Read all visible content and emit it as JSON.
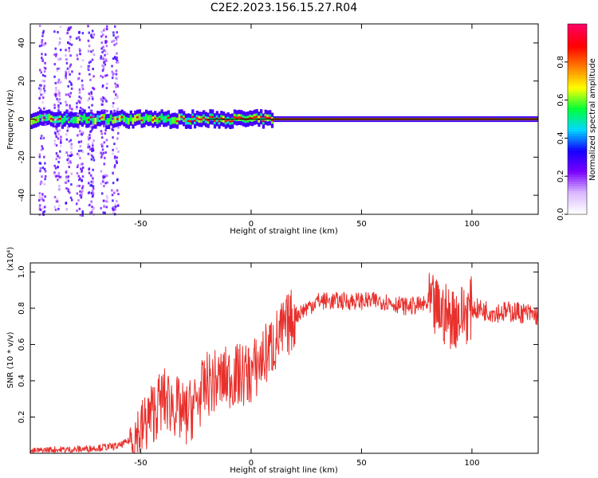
{
  "title": "C2E2.2023.156.15.27.R04",
  "colors": {
    "snr_line": "#e8302c",
    "colormap": [
      "#ffffff",
      "#d9b8ff",
      "#7a00ff",
      "#1400ff",
      "#00d8ff",
      "#00ff3a",
      "#ffff00",
      "#ff8000",
      "#ff0000",
      "#ff0060"
    ]
  },
  "chart_data": [
    {
      "type": "heatmap",
      "name": "spectrogram",
      "xlabel": "Height of straight line (km)",
      "ylabel": "Frequency (Hz)",
      "xlim": [
        -100,
        130
      ],
      "ylim": [
        -50,
        50
      ],
      "xticks": [
        -50,
        0,
        50,
        100
      ],
      "yticks": [
        -40,
        -20,
        0,
        20,
        40
      ],
      "xtick_labels": [
        "-50",
        "0",
        "50",
        "100"
      ],
      "ytick_labels": [
        "-40",
        "-20",
        "0",
        "20",
        "40"
      ],
      "colorbar": {
        "label": "Normalized spectral amplitude",
        "range": [
          0.0,
          1.0
        ],
        "ticks": [
          0.0,
          0.2,
          0.4,
          0.6,
          0.8
        ],
        "tick_labels": [
          "0.0",
          "0.2",
          "0.4",
          "0.6",
          "0.8"
        ]
      },
      "features": {
        "carrier_frequency_hz": 0,
        "band_halfwidth_hz_low_altitude": 4,
        "band_halfwidth_hz_high_altitude": 1.5,
        "diffuse_scatter_x_range": [
          -100,
          -60
        ],
        "diffuse_scatter_freq_range": [
          -50,
          50
        ]
      }
    },
    {
      "type": "line",
      "name": "snr",
      "xlabel": "Height of straight line (km)",
      "ylabel": "SNR (10 * v/v)",
      "yscale_label": "(x10⁴)",
      "xlim": [
        -100,
        130
      ],
      "ylim": [
        0.0,
        1.05
      ],
      "xticks": [
        -50,
        0,
        50,
        100
      ],
      "yticks": [
        0.2,
        0.4,
        0.6,
        0.8,
        1.0
      ],
      "xtick_labels": [
        "-50",
        "0",
        "50",
        "100"
      ],
      "ytick_labels": [
        "0.2",
        "0.4",
        "0.6",
        "0.8",
        "1.0"
      ],
      "series": [
        {
          "x": [
            -100,
            -90,
            -80,
            -70,
            -60,
            -55,
            -50,
            -45,
            -40,
            -35,
            -30,
            -25,
            -20,
            -15,
            -10,
            -5,
            0,
            5,
            10,
            15,
            20,
            25,
            30,
            40,
            50,
            60,
            70,
            80,
            90,
            95,
            100,
            110,
            120,
            130
          ],
          "values": [
            0.01,
            0.02,
            0.02,
            0.03,
            0.04,
            0.07,
            0.12,
            0.22,
            0.3,
            0.27,
            0.2,
            0.28,
            0.38,
            0.4,
            0.42,
            0.43,
            0.44,
            0.52,
            0.6,
            0.68,
            0.76,
            0.8,
            0.84,
            0.84,
            0.84,
            0.84,
            0.81,
            0.82,
            0.75,
            0.76,
            0.8,
            0.78,
            0.78,
            0.76
          ]
        }
      ]
    }
  ]
}
